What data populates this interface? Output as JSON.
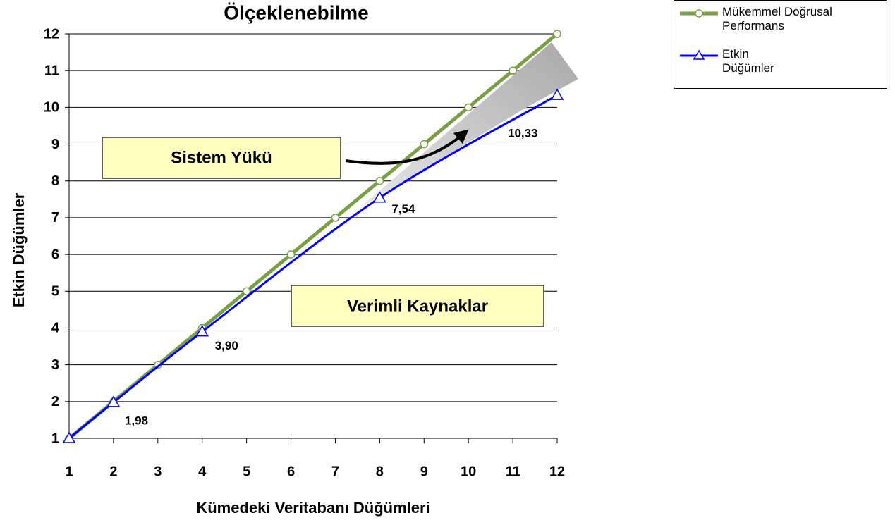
{
  "chart_data": {
    "type": "line",
    "title": "Ölçeklenebilme",
    "x_label": "Kümedeki Veritabanı Düğümleri",
    "y_label": "Etkin Düğümler",
    "series": [
      {
        "name": "Mükemmel Doğrusal Performans",
        "color": "#77a043",
        "marker": "circle",
        "x": [
          1,
          2,
          3,
          4,
          5,
          6,
          7,
          8,
          9,
          10,
          11,
          12
        ],
        "values": [
          1,
          2,
          3,
          4,
          5,
          6,
          7,
          8,
          9,
          10,
          11,
          12
        ]
      },
      {
        "name": "Etkin Düğümler",
        "color": "#0000ff",
        "marker": "triangle",
        "x": [
          1,
          2,
          4,
          8,
          12
        ],
        "values": [
          1,
          1.98,
          3.9,
          7.54,
          10.33
        ],
        "value_labels": [
          null,
          "1,98",
          "3,90",
          "7,54",
          "10,33"
        ]
      }
    ],
    "xlim": [
      1,
      12
    ],
    "xticks": [
      1,
      2,
      3,
      4,
      5,
      6,
      7,
      8,
      9,
      10,
      11,
      12
    ],
    "ylim": [
      1,
      12
    ],
    "yticks": [
      1,
      2,
      3,
      4,
      5,
      6,
      7,
      8,
      9,
      10,
      11,
      12
    ],
    "grid": true,
    "legend": "top-right",
    "annotations": [
      "Sistem Yükü",
      "Verimli Kaynaklar"
    ]
  }
}
